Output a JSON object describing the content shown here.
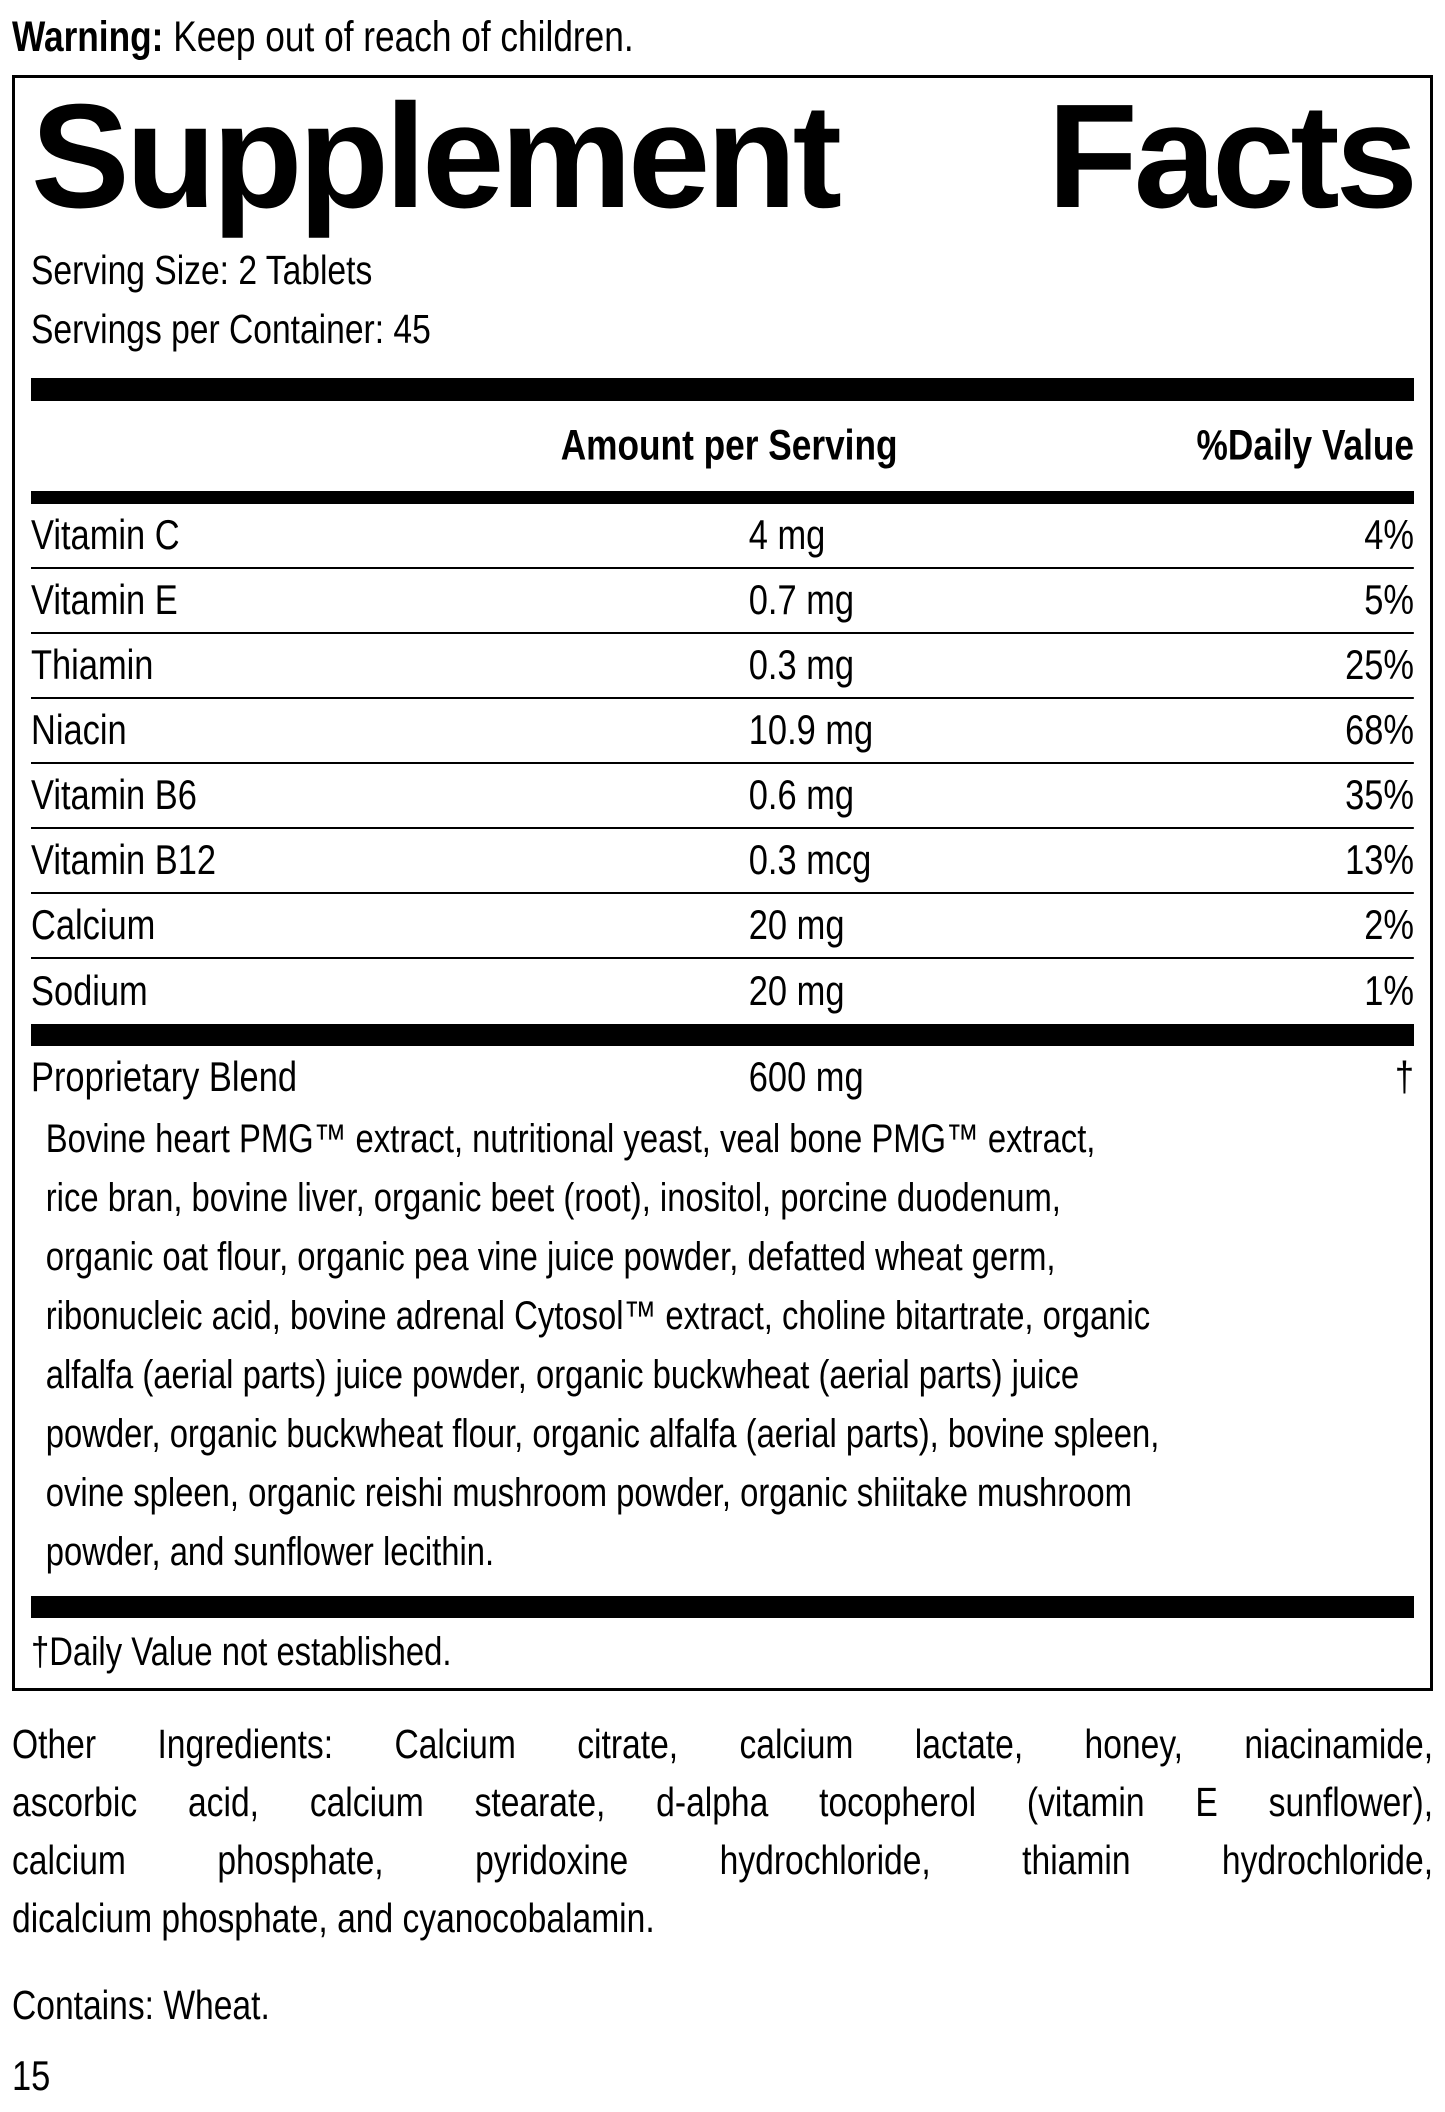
{
  "page": {
    "warning_bold": "Warning:",
    "warning_rest": " Keep out of reach of children.",
    "page_number": "15"
  },
  "supplement_facts": {
    "title_word1": "Supplement",
    "title_word2": "Facts",
    "serving_size": "Serving Size: 2 Tablets",
    "servings_per_container": "Servings per Container: 45",
    "header": {
      "amount_label": "Amount per Serving",
      "daily_value_label": "%Daily Value"
    },
    "rows": [
      {
        "name": "Vitamin C",
        "amount": "4 mg",
        "dv": "4%"
      },
      {
        "name": "Vitamin E",
        "amount": "0.7 mg",
        "dv": "5%"
      },
      {
        "name": "Thiamin",
        "amount": "0.3 mg",
        "dv": "25%"
      },
      {
        "name": "Niacin",
        "amount": "10.9 mg",
        "dv": "68%"
      },
      {
        "name": "Vitamin B6",
        "amount": "0.6 mg",
        "dv": "35%"
      },
      {
        "name": "Vitamin B12",
        "amount": "0.3 mcg",
        "dv": "13%"
      },
      {
        "name": "Calcium",
        "amount": "20 mg",
        "dv": "2%"
      },
      {
        "name": "Sodium",
        "amount": "20 mg",
        "dv": "1%"
      }
    ],
    "proprietary": {
      "name": "Proprietary Blend",
      "amount": "600 mg",
      "dv": "†"
    },
    "blend_lines": [
      "Bovine heart PMG™ extract, nutritional yeast, veal bone PMG™ extract,",
      "rice bran, bovine liver, organic beet (root), inositol, porcine duodenum,",
      "organic oat flour, organic pea vine juice powder, defatted wheat germ,",
      "ribonucleic acid, bovine adrenal Cytosol™ extract, choline bitartrate, organic",
      "alfalfa (aerial parts) juice powder, organic buckwheat (aerial parts) juice",
      "powder, organic buckwheat flour, organic alfalfa (aerial parts), bovine spleen,",
      "ovine spleen, organic reishi mushroom powder, organic shiitake mushroom",
      "powder, and sunflower lecithin."
    ],
    "footnote": "†Daily Value not established."
  },
  "other_ingredients_lines": [
    "Other Ingredients: Calcium citrate, calcium lactate, honey, niacinamide,",
    "ascorbic acid, calcium stearate, d-alpha tocopherol (vitamin E sunflower),",
    "calcium phosphate, pyridoxine hydrochloride, thiamin hydrochloride,",
    "dicalcium phosphate, and cyanocobalamin."
  ],
  "contains": "Contains: Wheat.",
  "colors": {
    "ink": "#000000",
    "paper": "#ffffff"
  }
}
